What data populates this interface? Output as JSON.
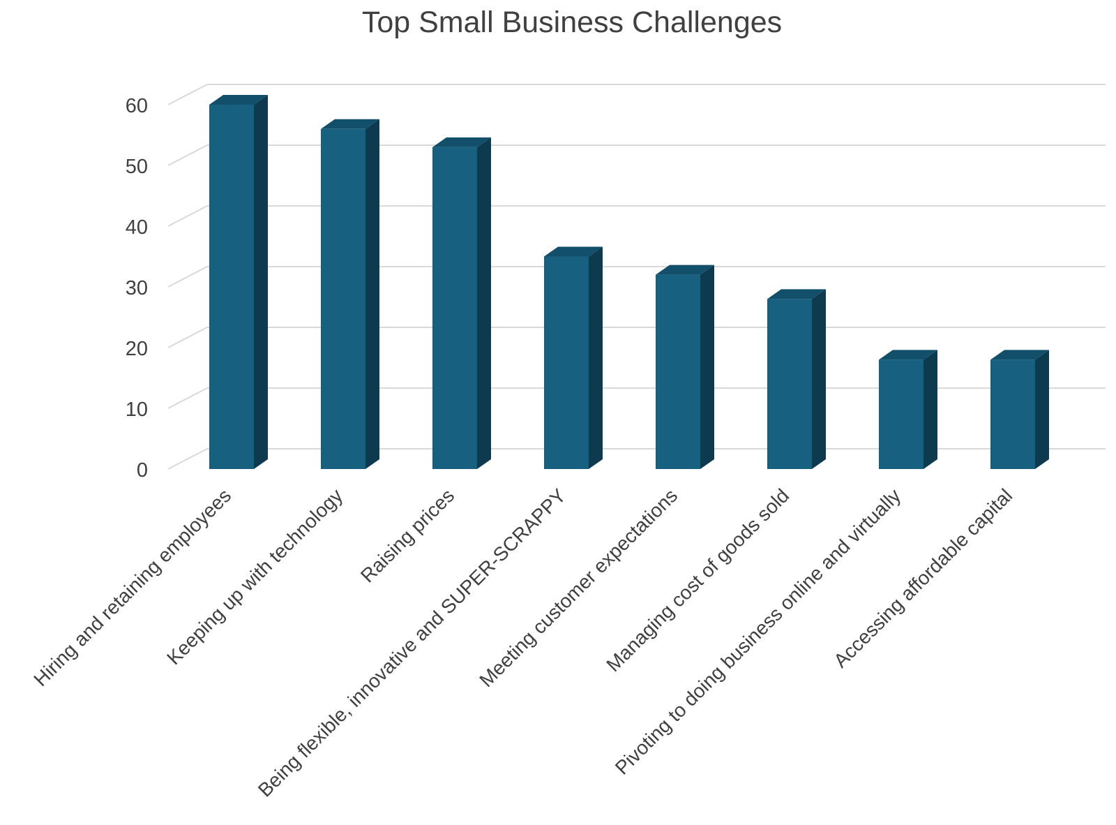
{
  "chart_data": {
    "type": "bar",
    "title": "Top Small Business Challenges",
    "xlabel": "",
    "ylabel": "",
    "categories": [
      "Hiring and retaining employees",
      "Keeping up with technology",
      "Raising prices",
      "Being flexible, innovative and SUPER-SCRAPPY",
      "Meeting customer expectations",
      "Managing cost of goods sold",
      "Pivoting to doing business online and virtually",
      "Accessing affordable capital"
    ],
    "values": [
      60,
      56,
      53,
      35,
      32,
      28,
      18,
      18
    ],
    "ylim": [
      0,
      60
    ],
    "yticks": [
      0,
      10,
      20,
      30,
      40,
      50,
      60
    ],
    "grid": true,
    "legend": "none",
    "style": "3d-column",
    "colors": {
      "bar_front": "#17607F",
      "bar_side": "#0D3A4F",
      "bar_top": "#124F6A",
      "grid": "#D9D9D9",
      "text": "#404040"
    }
  }
}
